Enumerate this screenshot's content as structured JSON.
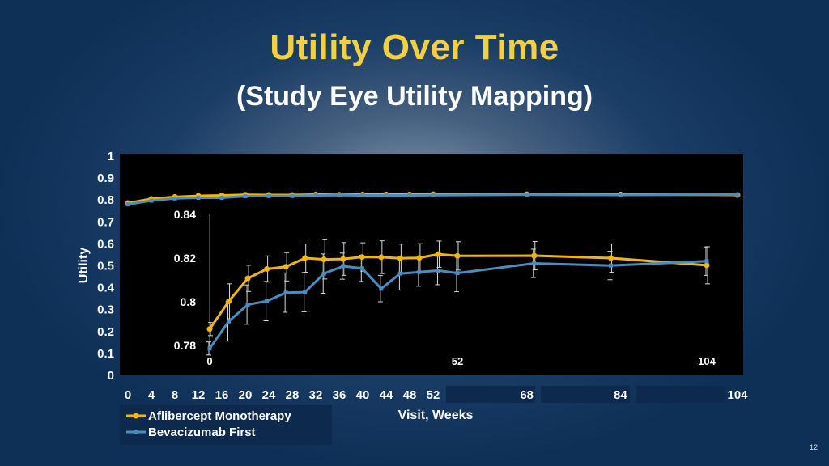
{
  "title": "Utility Over Time",
  "subtitle": "(Study Eye Utility Mapping)",
  "page_number": "12",
  "colors": {
    "series1": "#f2b705",
    "series2": "#4a8ec0",
    "title": "#f4d03f"
  },
  "chart_data": [
    {
      "type": "line",
      "ylabel": "Utility",
      "xlabel": "Visit, Weeks",
      "ylim": [
        0,
        1
      ],
      "yticks": [
        "1",
        "0.9",
        "0.8",
        "0.7",
        "0.6",
        "0.5",
        "0.4",
        "0.3",
        "0.2",
        "0.1",
        "0"
      ],
      "ytick_values": [
        1,
        0.9,
        0.8,
        0.7,
        0.6,
        0.5,
        0.4,
        0.3,
        0.2,
        0.1,
        0
      ],
      "xticks": [
        "0",
        "4",
        "8",
        "12",
        "16",
        "20",
        "24",
        "28",
        "32",
        "36",
        "40",
        "44",
        "48",
        "52",
        "68",
        "84",
        "104"
      ],
      "xtick_values": [
        0,
        4,
        8,
        12,
        16,
        20,
        24,
        28,
        32,
        36,
        40,
        44,
        48,
        52,
        68,
        84,
        104
      ],
      "xlim": [
        0,
        104
      ],
      "legend_position": "bottom-left",
      "series": [
        {
          "name": "Aflibercept Monotherapy",
          "x": [
            0,
            4,
            8,
            12,
            16,
            20,
            24,
            28,
            32,
            36,
            40,
            44,
            48,
            52,
            68,
            84,
            104
          ],
          "values": [
            0.786,
            0.805,
            0.814,
            0.819,
            0.821,
            0.824,
            0.823,
            0.823,
            0.825,
            0.824,
            0.825,
            0.825,
            0.825,
            0.826,
            0.826,
            0.825,
            0.823
          ]
        },
        {
          "name": "Bevacizumab First",
          "x": [
            0,
            4,
            8,
            12,
            16,
            20,
            24,
            28,
            32,
            36,
            40,
            44,
            48,
            52,
            68,
            84,
            104
          ],
          "values": [
            0.78,
            0.797,
            0.807,
            0.81,
            0.81,
            0.817,
            0.818,
            0.818,
            0.821,
            0.822,
            0.821,
            0.821,
            0.821,
            0.822,
            0.824,
            0.823,
            0.825
          ]
        }
      ]
    },
    {
      "type": "line",
      "inset": true,
      "ylim": [
        0.78,
        0.84
      ],
      "yticks": [
        "0.84",
        "0.82",
        "0.8",
        "0.78"
      ],
      "ytick_values": [
        0.84,
        0.82,
        0.8,
        0.78
      ],
      "xticks": [
        "0",
        "52",
        "104"
      ],
      "xtick_values": [
        0,
        52,
        104
      ],
      "xlim": [
        0,
        104
      ],
      "series": [
        {
          "name": "Aflibercept Monotherapy",
          "x": [
            0,
            4,
            8,
            12,
            16,
            20,
            24,
            28,
            32,
            36,
            40,
            44,
            48,
            52,
            68,
            84,
            104
          ],
          "values": [
            0.7875,
            0.8002,
            0.8107,
            0.815,
            0.816,
            0.82,
            0.8194,
            0.8196,
            0.8205,
            0.8204,
            0.8199,
            0.8201,
            0.8218,
            0.821,
            0.8211,
            0.82,
            0.8167
          ],
          "error": [
            0.003,
            0.008,
            0.006,
            0.006,
            0.0065,
            0.0065,
            0.009,
            0.0075,
            0.0065,
            0.0075,
            0.0065,
            0.0065,
            0.006,
            0.0065,
            0.0065,
            0.0065,
            0.0085
          ]
        },
        {
          "name": "Bevacizumab First",
          "x": [
            0,
            4,
            8,
            12,
            16,
            20,
            24,
            28,
            32,
            36,
            40,
            44,
            48,
            52,
            68,
            84,
            104
          ],
          "values": [
            0.7786,
            0.791,
            0.7987,
            0.8003,
            0.8042,
            0.8044,
            0.8129,
            0.8163,
            0.8153,
            0.806,
            0.8129,
            0.8136,
            0.8143,
            0.8131,
            0.8176,
            0.8166,
            0.8186
          ],
          "error": [
            0.003,
            0.009,
            0.009,
            0.009,
            0.009,
            0.009,
            0.009,
            0.006,
            0.006,
            0.006,
            0.0075,
            0.0065,
            0.0065,
            0.0085,
            0.0065,
            0.0065,
            0.0065
          ]
        }
      ]
    }
  ]
}
